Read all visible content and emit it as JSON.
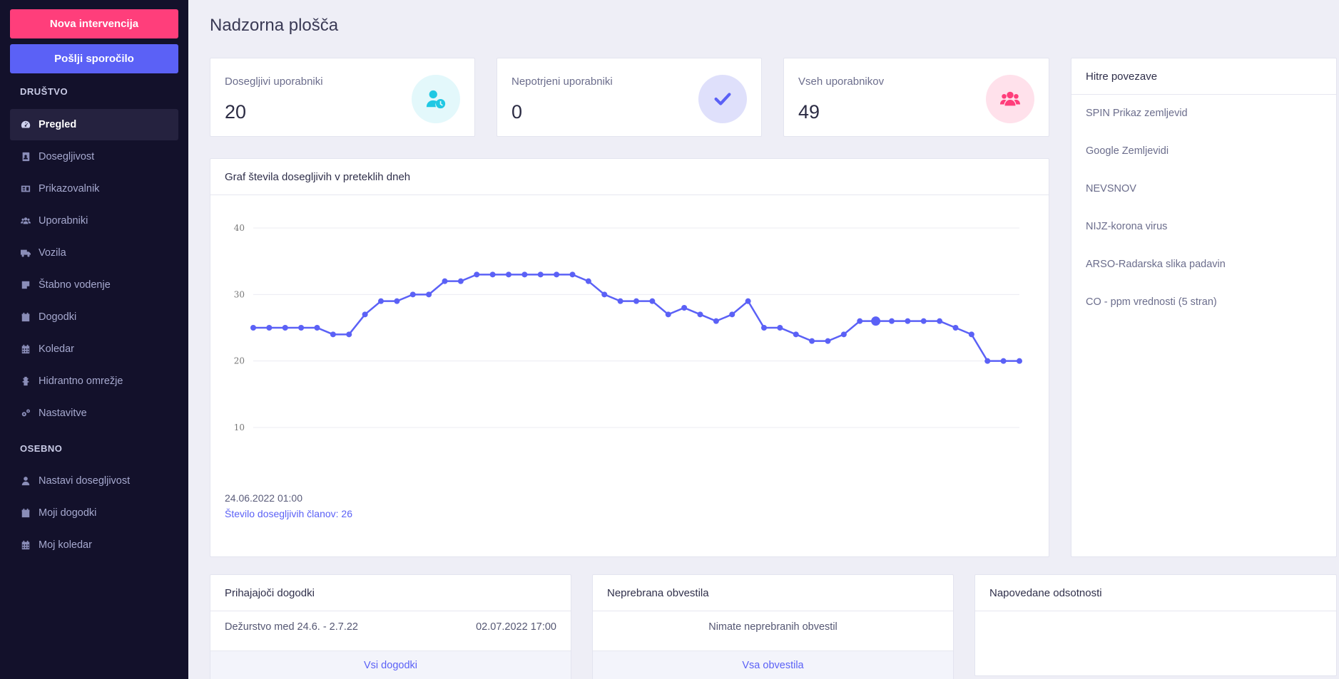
{
  "sidebar": {
    "buttons": {
      "nova": "Nova intervencija",
      "poslji": "Pošlji sporočilo"
    },
    "section_drustvo": "DRUŠTVO",
    "items_drustvo": [
      {
        "label": "Pregled",
        "icon": "dashboard-icon",
        "active": true
      },
      {
        "label": "Dosegljivost",
        "icon": "contact-book-icon"
      },
      {
        "label": "Prikazovalnik",
        "icon": "id-card-icon"
      },
      {
        "label": "Uporabniki",
        "icon": "users-icon"
      },
      {
        "label": "Vozila",
        "icon": "truck-icon"
      },
      {
        "label": "Štabno vodenje",
        "icon": "sticky-note-icon"
      },
      {
        "label": "Dogodki",
        "icon": "calendar-icon"
      },
      {
        "label": "Koledar",
        "icon": "calendar-grid-icon"
      },
      {
        "label": "Hidrantno omrežje",
        "icon": "hydrant-icon"
      },
      {
        "label": "Nastavitve",
        "icon": "cogs-icon"
      }
    ],
    "section_osebno": "OSEBNO",
    "items_osebno": [
      {
        "label": "Nastavi dosegljivost",
        "icon": "user-icon"
      },
      {
        "label": "Moji dogodki",
        "icon": "calendar-icon"
      },
      {
        "label": "Moj koledar",
        "icon": "calendar-grid-icon"
      }
    ]
  },
  "page": {
    "title": "Nadzorna plošča"
  },
  "stats": [
    {
      "label": "Dosegljivi uporabniki",
      "value": "20",
      "icon": "user-clock-icon",
      "color": "#1fc8e3",
      "bg": "#e3f8fb"
    },
    {
      "label": "Nepotrjeni uporabniki",
      "value": "0",
      "icon": "check-icon",
      "color": "#5b61f6",
      "bg": "#dfe0fb"
    },
    {
      "label": "Vseh uporabnikov",
      "value": "49",
      "icon": "users-icon",
      "color": "#ff3e7b",
      "bg": "#ffe1eb"
    }
  ],
  "quick_links": {
    "title": "Hitre povezave",
    "items": [
      "SPIN Prikaz zemljevid",
      "Google Zemljevidi",
      "NEVSNOV",
      "NIJZ-korona virus",
      "ARSO-Radarska slika padavin",
      "CO - ppm vrednosti (5 stran)"
    ]
  },
  "chart_card": {
    "title": "Graf števila dosegljivih v preteklih dneh",
    "tooltip_date": "24.06.2022 01:00",
    "tooltip_value": "Število dosegljivih članov: 26"
  },
  "chart_data": {
    "type": "line",
    "yticks": [
      10,
      20,
      30,
      40
    ],
    "ylim": [
      5,
      40
    ],
    "values": [
      25,
      25,
      25,
      25,
      25,
      24,
      24,
      27,
      29,
      29,
      30,
      30,
      32,
      32,
      33,
      33,
      33,
      33,
      33,
      33,
      33,
      32,
      30,
      29,
      29,
      29,
      27,
      28,
      27,
      26,
      27,
      29,
      25,
      25,
      24,
      23,
      23,
      24,
      26,
      26,
      26,
      26,
      26,
      26,
      25,
      24,
      20,
      20,
      20
    ],
    "highlight_index": 39,
    "color": "#5b61f6"
  },
  "events": {
    "title": "Prihajajoči dogodki",
    "row_name": "Dežurstvo med 24.6. - 2.7.22",
    "row_date": "02.07.2022 17:00",
    "footer": "Vsi dogodki"
  },
  "notifications": {
    "title": "Neprebrana obvestila",
    "empty": "Nimate neprebranih obvestil",
    "footer": "Vsa obvestila"
  },
  "absences": {
    "title": "Napovedane odsotnosti"
  }
}
